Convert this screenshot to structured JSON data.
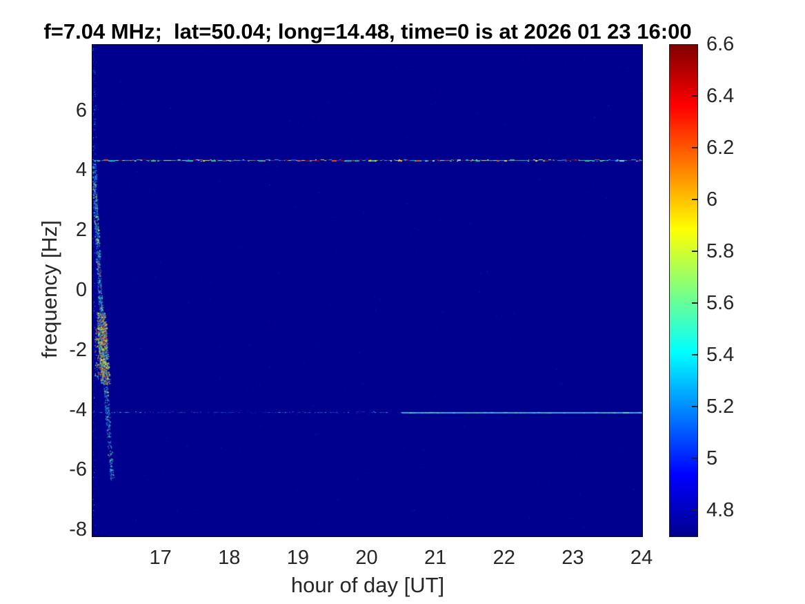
{
  "figure": {
    "title": "f=7.04 MHz;  lat=50.04; long=14.48, time=0 is at 2026 01 23 16:00",
    "xlabel": "hour of day [UT]",
    "ylabel": "frequency [Hz]",
    "xtick_labels": [
      "17",
      "18",
      "19",
      "20",
      "21",
      "22",
      "23",
      "24"
    ],
    "ytick_labels": [
      "6",
      "4",
      "2",
      "0",
      "-2",
      "-4",
      "-6",
      "-8"
    ],
    "colorbar_tick_labels": [
      "6.6",
      "6.4",
      "6.2",
      "6",
      "5.8",
      "5.6",
      "5.4",
      "5.2",
      "5",
      "4.8"
    ]
  },
  "chart_data": {
    "type": "heatmap",
    "title": "f=7.04 MHz;  lat=50.04; long=14.48, time=0 is at 2026 01 23 16:00",
    "xlabel": "hour of day [UT]",
    "ylabel": "frequency [Hz]",
    "xlim": [
      16,
      24
    ],
    "ylim": [
      -8.2,
      8.2
    ],
    "xticks": [
      17,
      18,
      19,
      20,
      21,
      22,
      23,
      24
    ],
    "yticks": [
      6,
      4,
      2,
      0,
      -2,
      -4,
      -6,
      -8
    ],
    "grid": false,
    "colormap": "jet",
    "color_axis_range": [
      4.7,
      6.6
    ],
    "colorbar_ticks": [
      6.6,
      6.4,
      6.2,
      6,
      5.8,
      5.6,
      5.4,
      5.2,
      5,
      4.8
    ],
    "background_value": 4.72,
    "colormap_stop_positions": [
      0,
      0.125,
      0.375,
      0.625,
      0.875,
      1
    ],
    "features": [
      {
        "name": "upper-carrier-line",
        "type": "horizontal-line",
        "frequency_hz": 4.35,
        "x_range_hours": [
          16,
          24
        ],
        "appearance": "thin speckled line spanning full width; cyan/teal segments mixed with maroon, purple, yellow, orange and red speckles"
      },
      {
        "name": "lower-carrier-line",
        "type": "horizontal-line",
        "frequency_hz": -4.05,
        "x_range_hours": [
          16,
          24
        ],
        "split_hour": 20.5,
        "appearance": "faint dashed medium-blue line left of ~20.5 UT, continuous light-cyan line to the right"
      },
      {
        "name": "startup-transient",
        "type": "vertical-event",
        "x_range_hours": [
          16.0,
          16.3
        ],
        "frequency_range_hz": [
          -6.4,
          7.8
        ],
        "drift_from_hz": 4.3,
        "drift_to_hz": -6.3,
        "dense_range_hz": [
          -3.1,
          -0.7
        ],
        "appearance": "multicoloured speckle burst at the left edge drifting down from +4.3 Hz to -6.3 Hz, most intense (red/yellow/green) between -1 and -3 Hz"
      }
    ]
  },
  "colors": {
    "page_background": "#ffffff",
    "heatmap_background": "#00008f",
    "tick_label_color": "#262626",
    "title_color": "#000000",
    "jet_stops": [
      "#00008f",
      "#0000ff",
      "#00ffff",
      "#ffff00",
      "#ff0000",
      "#800000"
    ]
  }
}
